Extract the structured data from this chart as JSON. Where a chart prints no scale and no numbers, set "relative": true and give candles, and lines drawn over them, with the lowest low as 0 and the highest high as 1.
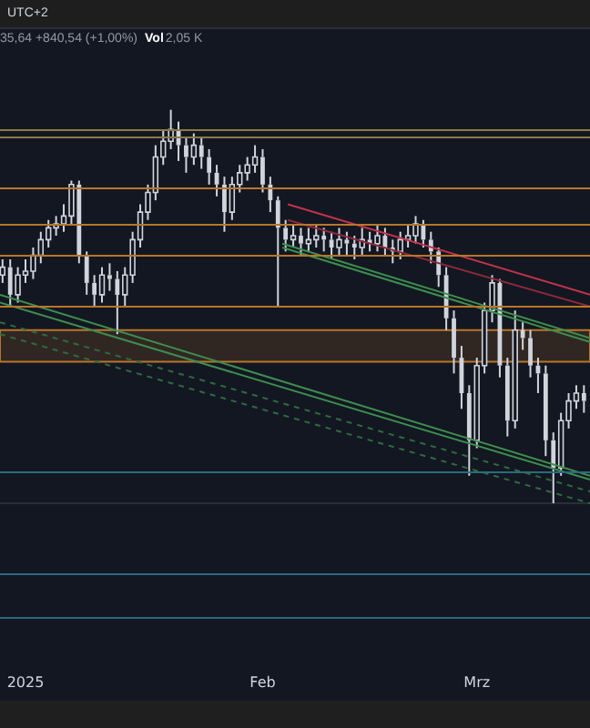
{
  "chart_data": {
    "type": "candlestick",
    "relative": true,
    "annotations": [
      "UTC+2",
      "35,64  +840,54 (+1,00%)",
      "Vol",
      "2,05 K"
    ],
    "xlim": [
      "2024-12-28T16:00",
      "2025-03-15T19:00"
    ],
    "xticks": [
      {
        "value": "2025-01-01",
        "label": "2025"
      },
      {
        "value": "2025-02-01",
        "label": "Feb"
      },
      {
        "value": "2025-03-01",
        "label": "Mrz"
      }
    ],
    "ref_lines": [
      {
        "axis": "y",
        "value": 0.95,
        "label": null,
        "color": "#8a7a45"
      },
      {
        "axis": "y",
        "value": 0.93,
        "label": null,
        "color": "#8a7a45"
      },
      {
        "axis": "y",
        "value": 0.8,
        "label": null,
        "color": "#b8762a"
      },
      {
        "axis": "y",
        "value": 0.71,
        "label": null,
        "color": "#b8762a"
      },
      {
        "axis": "y",
        "value": 0.63,
        "label": null,
        "color": "#b8762a"
      },
      {
        "axis": "y",
        "value": 0.5,
        "label": null,
        "color": "#b8762a"
      },
      {
        "axis": "y",
        "value": 0.08,
        "label": null,
        "color": "#2a6b7d"
      },
      {
        "axis": "y",
        "value": -0.18,
        "label": null,
        "color": "#2a6b7d"
      },
      {
        "axis": "y",
        "value": -0.29,
        "label": null,
        "color": "#2a6b7d"
      }
    ],
    "bands": [
      {
        "axis": "y",
        "from": 0.36,
        "to": 0.44,
        "label": null,
        "color": "#b8762a"
      }
    ],
    "series": [
      {
        "type": "candlestick",
        "color": "#d1d4dc",
        "x": [
          "2024-12-29",
          "2024-12-30",
          "2024-12-31",
          "2025-01-01",
          "2025-01-02",
          "2025-01-03",
          "2025-01-04",
          "2025-01-05",
          "2025-01-06",
          "2025-01-07",
          "2025-01-08",
          "2025-01-09",
          "2025-01-10",
          "2025-01-11",
          "2025-01-12",
          "2025-01-13",
          "2025-01-14",
          "2025-01-15",
          "2025-01-16",
          "2025-01-17",
          "2025-01-18",
          "2025-01-19",
          "2025-01-20",
          "2025-01-21",
          "2025-01-22",
          "2025-01-23",
          "2025-01-24",
          "2025-01-25",
          "2025-01-26",
          "2025-01-27",
          "2025-01-28",
          "2025-01-29",
          "2025-01-30",
          "2025-01-31",
          "2025-02-01",
          "2025-02-02",
          "2025-02-03",
          "2025-02-04",
          "2025-02-05",
          "2025-02-06",
          "2025-02-07",
          "2025-02-08",
          "2025-02-09",
          "2025-02-10",
          "2025-02-11",
          "2025-02-12",
          "2025-02-13",
          "2025-02-14",
          "2025-02-15",
          "2025-02-16",
          "2025-02-17",
          "2025-02-18",
          "2025-02-19",
          "2025-02-20",
          "2025-02-21",
          "2025-02-22",
          "2025-02-23",
          "2025-02-24",
          "2025-02-25",
          "2025-02-26",
          "2025-02-27",
          "2025-02-28",
          "2025-03-01",
          "2025-03-02",
          "2025-03-03",
          "2025-03-04",
          "2025-03-05",
          "2025-03-06",
          "2025-03-07",
          "2025-03-08",
          "2025-03-09",
          "2025-03-10",
          "2025-03-11",
          "2025-03-12",
          "2025-03-13",
          "2025-03-14",
          "2025-03-15"
        ],
        "ohlc": [
          [
            0.58,
            0.62,
            0.56,
            0.6
          ],
          [
            0.6,
            0.62,
            0.5,
            0.53
          ],
          [
            0.53,
            0.6,
            0.51,
            0.58
          ],
          [
            0.58,
            0.62,
            0.56,
            0.59
          ],
          [
            0.59,
            0.65,
            0.57,
            0.63
          ],
          [
            0.63,
            0.69,
            0.61,
            0.67
          ],
          [
            0.67,
            0.72,
            0.65,
            0.7
          ],
          [
            0.7,
            0.73,
            0.68,
            0.71
          ],
          [
            0.71,
            0.76,
            0.69,
            0.73
          ],
          [
            0.73,
            0.82,
            0.71,
            0.81
          ],
          [
            0.81,
            0.82,
            0.61,
            0.63
          ],
          [
            0.63,
            0.64,
            0.53,
            0.56
          ],
          [
            0.56,
            0.58,
            0.5,
            0.53
          ],
          [
            0.53,
            0.6,
            0.51,
            0.58
          ],
          [
            0.58,
            0.61,
            0.54,
            0.57
          ],
          [
            0.57,
            0.59,
            0.43,
            0.53
          ],
          [
            0.53,
            0.6,
            0.5,
            0.58
          ],
          [
            0.58,
            0.69,
            0.56,
            0.67
          ],
          [
            0.67,
            0.76,
            0.65,
            0.74
          ],
          [
            0.74,
            0.81,
            0.72,
            0.79
          ],
          [
            0.79,
            0.91,
            0.77,
            0.88
          ],
          [
            0.88,
            0.95,
            0.86,
            0.92
          ],
          [
            0.92,
            1,
            0.9,
            0.95
          ],
          [
            0.95,
            0.97,
            0.87,
            0.91
          ],
          [
            0.91,
            0.93,
            0.84,
            0.88
          ],
          [
            0.88,
            0.94,
            0.86,
            0.91
          ],
          [
            0.91,
            0.93,
            0.85,
            0.88
          ],
          [
            0.88,
            0.9,
            0.81,
            0.84
          ],
          [
            0.84,
            0.86,
            0.78,
            0.81
          ],
          [
            0.81,
            0.83,
            0.69,
            0.74
          ],
          [
            0.74,
            0.83,
            0.72,
            0.81
          ],
          [
            0.81,
            0.86,
            0.79,
            0.84
          ],
          [
            0.84,
            0.88,
            0.82,
            0.86
          ],
          [
            0.86,
            0.91,
            0.84,
            0.88
          ],
          [
            0.88,
            0.9,
            0.79,
            0.81
          ],
          [
            0.81,
            0.83,
            0.74,
            0.77
          ],
          [
            0.77,
            0.78,
            0.5,
            0.7
          ],
          [
            0.7,
            0.72,
            0.64,
            0.67
          ],
          [
            0.67,
            0.71,
            0.65,
            0.68
          ],
          [
            0.68,
            0.7,
            0.63,
            0.66
          ],
          [
            0.66,
            0.7,
            0.64,
            0.67
          ],
          [
            0.67,
            0.71,
            0.65,
            0.68
          ],
          [
            0.68,
            0.7,
            0.64,
            0.67
          ],
          [
            0.67,
            0.69,
            0.62,
            0.65
          ],
          [
            0.65,
            0.7,
            0.63,
            0.67
          ],
          [
            0.67,
            0.69,
            0.63,
            0.66
          ],
          [
            0.66,
            0.68,
            0.62,
            0.65
          ],
          [
            0.65,
            0.7,
            0.63,
            0.67
          ],
          [
            0.67,
            0.69,
            0.64,
            0.66
          ],
          [
            0.66,
            0.71,
            0.64,
            0.68
          ],
          [
            0.68,
            0.7,
            0.63,
            0.65
          ],
          [
            0.65,
            0.67,
            0.61,
            0.64
          ],
          [
            0.64,
            0.69,
            0.62,
            0.67
          ],
          [
            0.67,
            0.71,
            0.65,
            0.68
          ],
          [
            0.68,
            0.73,
            0.66,
            0.71
          ],
          [
            0.71,
            0.72,
            0.65,
            0.67
          ],
          [
            0.67,
            0.69,
            0.61,
            0.64
          ],
          [
            0.64,
            0.65,
            0.55,
            0.58
          ],
          [
            0.58,
            0.6,
            0.44,
            0.47
          ],
          [
            0.47,
            0.49,
            0.33,
            0.37
          ],
          [
            0.37,
            0.4,
            0.24,
            0.28
          ],
          [
            0.28,
            0.3,
            0.07,
            0.16
          ],
          [
            0.16,
            0.37,
            0.14,
            0.35
          ],
          [
            0.35,
            0.51,
            0.33,
            0.49
          ],
          [
            0.49,
            0.58,
            0.46,
            0.56
          ],
          [
            0.56,
            0.57,
            0.32,
            0.35
          ],
          [
            0.35,
            0.37,
            0.17,
            0.21
          ],
          [
            0.21,
            0.49,
            0.19,
            0.44
          ],
          [
            0.44,
            0.46,
            0.39,
            0.42
          ],
          [
            0.42,
            0.44,
            0.32,
            0.35
          ],
          [
            0.35,
            0.37,
            0.28,
            0.33
          ],
          [
            0.33,
            0.35,
            0.12,
            0.16
          ],
          [
            0.16,
            0.18,
            0,
            0.09
          ],
          [
            0.09,
            0.23,
            0.07,
            0.21
          ],
          [
            0.21,
            0.28,
            0.19,
            0.26
          ],
          [
            0.26,
            0.3,
            0.24,
            0.28
          ],
          [
            0.28,
            0.3,
            0.23,
            0.26
          ]
        ]
      },
      {
        "type": "line",
        "color": "#c2334a",
        "line_style": "solid",
        "x": [
          "2025-02-04T07:00",
          "2025-03-15T19:00"
        ],
        "values": [
          0.76,
          0.53
        ]
      },
      {
        "type": "line",
        "color": "#8c2a3a",
        "line_style": "solid",
        "x": [
          "2025-02-04T07:00",
          "2025-03-15T19:00"
        ],
        "values": [
          0.72,
          0.5
        ]
      },
      {
        "type": "line",
        "color": "#3e8e4e",
        "line_style": "solid",
        "x": [
          "2025-02-03T14:00",
          "2025-03-15T19:00"
        ],
        "values": [
          0.66,
          0.42
        ]
      },
      {
        "type": "line",
        "color": "#3e8e4e",
        "line_style": "solid",
        "x": [
          "2025-02-03T14:00",
          "2025-03-15T19:00"
        ],
        "values": [
          0.65,
          0.41
        ]
      },
      {
        "type": "line",
        "color": "#3e8e4e",
        "line_style": "solid",
        "x": [
          "2024-12-28T16:00",
          "2025-03-15T19:00"
        ],
        "values": [
          0.53,
          0.07
        ]
      },
      {
        "type": "line",
        "color": "#3e8e4e",
        "line_style": "solid",
        "x": [
          "2024-12-28T16:00",
          "2025-03-15T19:00"
        ],
        "values": [
          0.51,
          0.06
        ]
      },
      {
        "type": "line",
        "color": "#2f6b3f",
        "line_style": "dashed",
        "x": [
          "2024-12-28T16:00",
          "2025-03-15T19:00"
        ],
        "values": [
          0.46,
          0.03
        ]
      },
      {
        "type": "line",
        "color": "#2f6b3f",
        "line_style": "dashed",
        "x": [
          "2024-12-28T16:00",
          "2025-03-15T19:00"
        ],
        "values": [
          0.43,
          0
        ]
      }
    ]
  }
}
